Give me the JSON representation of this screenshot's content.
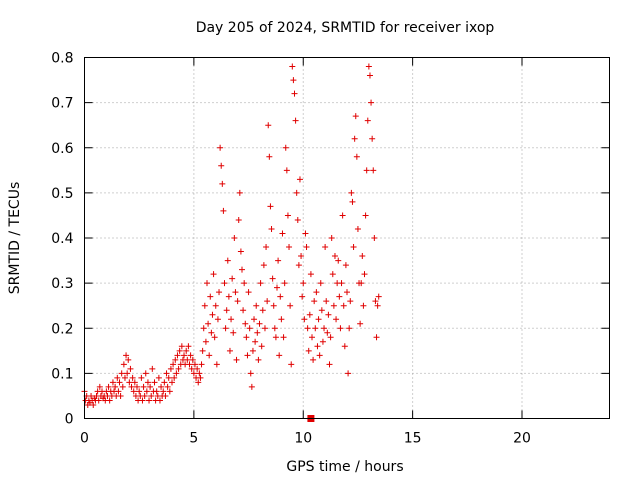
{
  "chart_data": {
    "type": "scatter",
    "title": "Day 205 of 2024, SRMTID for receiver ixop",
    "xlabel": "GPS time / hours",
    "ylabel": "SRMTID / TECUs",
    "xlim": [
      0,
      24
    ],
    "ylim": [
      0,
      0.8
    ],
    "xticks": [
      0,
      5,
      10,
      15,
      20
    ],
    "xtick_labels": [
      "0",
      "5",
      "10",
      "15",
      "20"
    ],
    "yticks": [
      0,
      0.1,
      0.2,
      0.3,
      0.4,
      0.5,
      0.6,
      0.7,
      0.8
    ],
    "ytick_labels": [
      "0",
      "0.1",
      "0.2",
      "0.3",
      "0.4",
      "0.5",
      "0.6",
      "0.7",
      "0.8"
    ],
    "grid": true,
    "marker": "+",
    "marker_color": "#e00000",
    "extra_marker": {
      "shape": "square",
      "x": 10.35,
      "y": 0.0,
      "color": "#e00000"
    },
    "series": [
      {
        "name": "SRMTID",
        "color": "#e00000",
        "points": [
          [
            0.0,
            0.06
          ],
          [
            0.05,
            0.04
          ],
          [
            0.1,
            0.05
          ],
          [
            0.15,
            0.03
          ],
          [
            0.2,
            0.04
          ],
          [
            0.25,
            0.035
          ],
          [
            0.3,
            0.05
          ],
          [
            0.35,
            0.04
          ],
          [
            0.4,
            0.03
          ],
          [
            0.45,
            0.045
          ],
          [
            0.5,
            0.04
          ],
          [
            0.55,
            0.05
          ],
          [
            0.6,
            0.06
          ],
          [
            0.65,
            0.04
          ],
          [
            0.7,
            0.07
          ],
          [
            0.75,
            0.05
          ],
          [
            0.8,
            0.06
          ],
          [
            0.85,
            0.045
          ],
          [
            0.9,
            0.05
          ],
          [
            0.95,
            0.04
          ],
          [
            1.0,
            0.06
          ],
          [
            1.05,
            0.05
          ],
          [
            1.1,
            0.07
          ],
          [
            1.15,
            0.04
          ],
          [
            1.2,
            0.06
          ],
          [
            1.25,
            0.05
          ],
          [
            1.3,
            0.08
          ],
          [
            1.35,
            0.06
          ],
          [
            1.4,
            0.07
          ],
          [
            1.45,
            0.05
          ],
          [
            1.5,
            0.09
          ],
          [
            1.55,
            0.06
          ],
          [
            1.6,
            0.08
          ],
          [
            1.65,
            0.05
          ],
          [
            1.7,
            0.1
          ],
          [
            1.75,
            0.07
          ],
          [
            1.8,
            0.12
          ],
          [
            1.85,
            0.09
          ],
          [
            1.9,
            0.14
          ],
          [
            1.95,
            0.1
          ],
          [
            2.0,
            0.13
          ],
          [
            2.05,
            0.08
          ],
          [
            2.1,
            0.11
          ],
          [
            2.15,
            0.07
          ],
          [
            2.2,
            0.09
          ],
          [
            2.25,
            0.06
          ],
          [
            2.3,
            0.08
          ],
          [
            2.35,
            0.05
          ],
          [
            2.4,
            0.07
          ],
          [
            2.45,
            0.04
          ],
          [
            2.5,
            0.06
          ],
          [
            2.55,
            0.05
          ],
          [
            2.6,
            0.09
          ],
          [
            2.65,
            0.04
          ],
          [
            2.7,
            0.07
          ],
          [
            2.75,
            0.05
          ],
          [
            2.8,
            0.1
          ],
          [
            2.85,
            0.06
          ],
          [
            2.9,
            0.08
          ],
          [
            2.95,
            0.04
          ],
          [
            3.0,
            0.07
          ],
          [
            3.05,
            0.05
          ],
          [
            3.1,
            0.11
          ],
          [
            3.15,
            0.06
          ],
          [
            3.2,
            0.08
          ],
          [
            3.25,
            0.04
          ],
          [
            3.3,
            0.06
          ],
          [
            3.35,
            0.05
          ],
          [
            3.4,
            0.09
          ],
          [
            3.45,
            0.04
          ],
          [
            3.5,
            0.07
          ],
          [
            3.55,
            0.05
          ],
          [
            3.6,
            0.06
          ],
          [
            3.65,
            0.08
          ],
          [
            3.7,
            0.05
          ],
          [
            3.75,
            0.1
          ],
          [
            3.8,
            0.07
          ],
          [
            3.85,
            0.09
          ],
          [
            3.9,
            0.06
          ],
          [
            3.95,
            0.11
          ],
          [
            4.0,
            0.08
          ],
          [
            4.05,
            0.12
          ],
          [
            4.1,
            0.09
          ],
          [
            4.15,
            0.13
          ],
          [
            4.2,
            0.1
          ],
          [
            4.25,
            0.14
          ],
          [
            4.3,
            0.11
          ],
          [
            4.35,
            0.15
          ],
          [
            4.4,
            0.12
          ],
          [
            4.45,
            0.16
          ],
          [
            4.5,
            0.13
          ],
          [
            4.55,
            0.14
          ],
          [
            4.6,
            0.12
          ],
          [
            4.65,
            0.15
          ],
          [
            4.7,
            0.13
          ],
          [
            4.75,
            0.16
          ],
          [
            4.8,
            0.12
          ],
          [
            4.85,
            0.14
          ],
          [
            4.9,
            0.11
          ],
          [
            4.95,
            0.13
          ],
          [
            5.0,
            0.1
          ],
          [
            5.05,
            0.12
          ],
          [
            5.1,
            0.09
          ],
          [
            5.15,
            0.11
          ],
          [
            5.2,
            0.08
          ],
          [
            5.25,
            0.1
          ],
          [
            5.3,
            0.09
          ],
          [
            5.35,
            0.12
          ],
          [
            5.4,
            0.15
          ],
          [
            5.45,
            0.2
          ],
          [
            5.5,
            0.25
          ],
          [
            5.55,
            0.17
          ],
          [
            5.6,
            0.3
          ],
          [
            5.65,
            0.21
          ],
          [
            5.7,
            0.14
          ],
          [
            5.75,
            0.27
          ],
          [
            5.8,
            0.19
          ],
          [
            5.85,
            0.23
          ],
          [
            5.9,
            0.32
          ],
          [
            5.95,
            0.18
          ],
          [
            6.0,
            0.25
          ],
          [
            6.05,
            0.12
          ],
          [
            6.1,
            0.22
          ],
          [
            6.15,
            0.28
          ],
          [
            6.2,
            0.6
          ],
          [
            6.25,
            0.56
          ],
          [
            6.3,
            0.52
          ],
          [
            6.35,
            0.46
          ],
          [
            6.4,
            0.3
          ],
          [
            6.45,
            0.2
          ],
          [
            6.5,
            0.24
          ],
          [
            6.55,
            0.35
          ],
          [
            6.6,
            0.27
          ],
          [
            6.65,
            0.15
          ],
          [
            6.7,
            0.22
          ],
          [
            6.75,
            0.31
          ],
          [
            6.8,
            0.19
          ],
          [
            6.85,
            0.4
          ],
          [
            6.9,
            0.28
          ],
          [
            6.95,
            0.13
          ],
          [
            7.0,
            0.26
          ],
          [
            7.05,
            0.44
          ],
          [
            7.1,
            0.5
          ],
          [
            7.15,
            0.37
          ],
          [
            7.2,
            0.33
          ],
          [
            7.25,
            0.24
          ],
          [
            7.3,
            0.3
          ],
          [
            7.35,
            0.21
          ],
          [
            7.4,
            0.18
          ],
          [
            7.45,
            0.14
          ],
          [
            7.5,
            0.28
          ],
          [
            7.55,
            0.2
          ],
          [
            7.6,
            0.1
          ],
          [
            7.65,
            0.07
          ],
          [
            7.7,
            0.15
          ],
          [
            7.75,
            0.22
          ],
          [
            7.8,
            0.17
          ],
          [
            7.85,
            0.25
          ],
          [
            7.9,
            0.19
          ],
          [
            7.95,
            0.13
          ],
          [
            8.0,
            0.21
          ],
          [
            8.05,
            0.3
          ],
          [
            8.1,
            0.16
          ],
          [
            8.15,
            0.24
          ],
          [
            8.2,
            0.34
          ],
          [
            8.25,
            0.2
          ],
          [
            8.3,
            0.38
          ],
          [
            8.35,
            0.26
          ],
          [
            8.4,
            0.65
          ],
          [
            8.45,
            0.58
          ],
          [
            8.5,
            0.47
          ],
          [
            8.55,
            0.42
          ],
          [
            8.6,
            0.31
          ],
          [
            8.65,
            0.25
          ],
          [
            8.7,
            0.2
          ],
          [
            8.75,
            0.18
          ],
          [
            8.8,
            0.29
          ],
          [
            8.85,
            0.35
          ],
          [
            8.9,
            0.14
          ],
          [
            8.95,
            0.27
          ],
          [
            9.0,
            0.22
          ],
          [
            9.05,
            0.41
          ],
          [
            9.1,
            0.18
          ],
          [
            9.15,
            0.3
          ],
          [
            9.2,
            0.6
          ],
          [
            9.25,
            0.55
          ],
          [
            9.3,
            0.45
          ],
          [
            9.35,
            0.38
          ],
          [
            9.4,
            0.25
          ],
          [
            9.45,
            0.12
          ],
          [
            9.5,
            0.78
          ],
          [
            9.55,
            0.75
          ],
          [
            9.6,
            0.72
          ],
          [
            9.65,
            0.66
          ],
          [
            9.7,
            0.5
          ],
          [
            9.75,
            0.44
          ],
          [
            9.8,
            0.34
          ],
          [
            9.85,
            0.53
          ],
          [
            9.9,
            0.36
          ],
          [
            9.95,
            0.27
          ],
          [
            10.0,
            0.3
          ],
          [
            10.05,
            0.22
          ],
          [
            10.1,
            0.41
          ],
          [
            10.15,
            0.38
          ],
          [
            10.2,
            0.2
          ],
          [
            10.25,
            0.15
          ],
          [
            10.3,
            0.23
          ],
          [
            10.35,
            0.32
          ],
          [
            10.4,
            0.18
          ],
          [
            10.45,
            0.13
          ],
          [
            10.5,
            0.26
          ],
          [
            10.55,
            0.2
          ],
          [
            10.6,
            0.28
          ],
          [
            10.65,
            0.16
          ],
          [
            10.7,
            0.22
          ],
          [
            10.75,
            0.14
          ],
          [
            10.8,
            0.3
          ],
          [
            10.85,
            0.24
          ],
          [
            10.9,
            0.17
          ],
          [
            10.95,
            0.2
          ],
          [
            11.0,
            0.38
          ],
          [
            11.05,
            0.26
          ],
          [
            11.1,
            0.19
          ],
          [
            11.15,
            0.23
          ],
          [
            11.2,
            0.12
          ],
          [
            11.25,
            0.18
          ],
          [
            11.3,
            0.4
          ],
          [
            11.35,
            0.32
          ],
          [
            11.4,
            0.25
          ],
          [
            11.45,
            0.36
          ],
          [
            11.5,
            0.22
          ],
          [
            11.55,
            0.3
          ],
          [
            11.6,
            0.35
          ],
          [
            11.65,
            0.27
          ],
          [
            11.7,
            0.2
          ],
          [
            11.75,
            0.3
          ],
          [
            11.8,
            0.45
          ],
          [
            11.85,
            0.25
          ],
          [
            11.9,
            0.16
          ],
          [
            11.95,
            0.34
          ],
          [
            12.0,
            0.28
          ],
          [
            12.05,
            0.1
          ],
          [
            12.1,
            0.2
          ],
          [
            12.15,
            0.26
          ],
          [
            12.2,
            0.5
          ],
          [
            12.25,
            0.48
          ],
          [
            12.3,
            0.38
          ],
          [
            12.35,
            0.62
          ],
          [
            12.4,
            0.67
          ],
          [
            12.45,
            0.58
          ],
          [
            12.5,
            0.42
          ],
          [
            12.55,
            0.3
          ],
          [
            12.6,
            0.21
          ],
          [
            12.65,
            0.3
          ],
          [
            12.7,
            0.36
          ],
          [
            12.75,
            0.25
          ],
          [
            12.8,
            0.32
          ],
          [
            12.85,
            0.45
          ],
          [
            12.9,
            0.55
          ],
          [
            12.95,
            0.66
          ],
          [
            13.0,
            0.78
          ],
          [
            13.05,
            0.76
          ],
          [
            13.1,
            0.7
          ],
          [
            13.15,
            0.62
          ],
          [
            13.2,
            0.55
          ],
          [
            13.25,
            0.4
          ],
          [
            13.3,
            0.26
          ],
          [
            13.35,
            0.18
          ],
          [
            13.4,
            0.25
          ],
          [
            13.45,
            0.27
          ]
        ]
      }
    ]
  }
}
